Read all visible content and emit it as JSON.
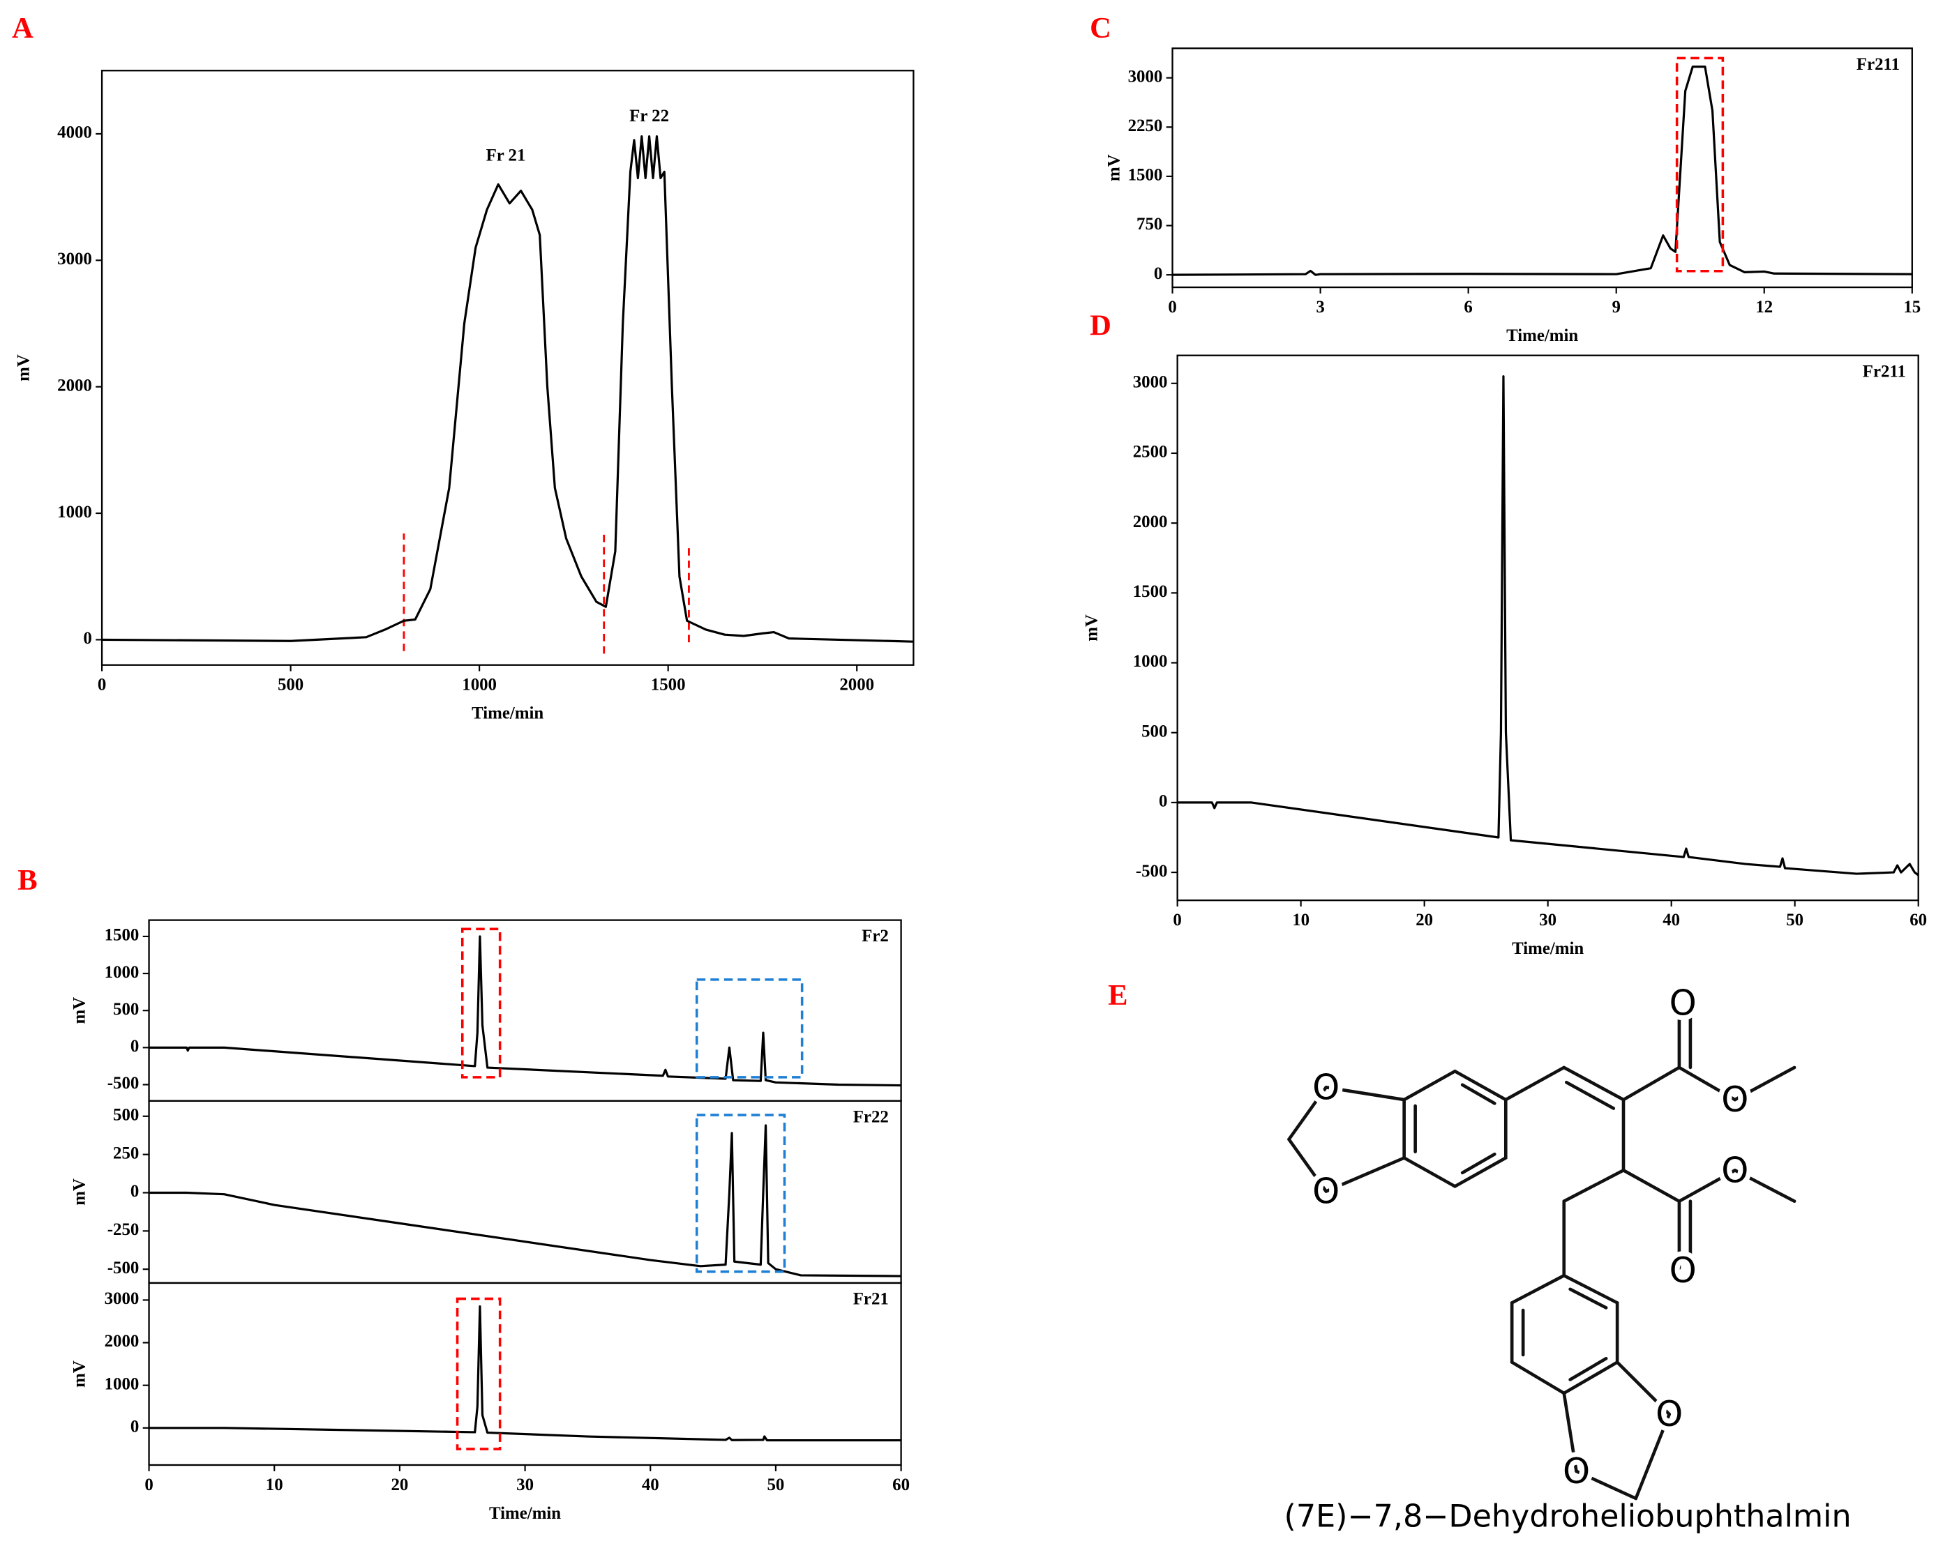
{
  "chart_data": [
    {
      "type": "line",
      "panel": "A",
      "xlabel": "Time/min",
      "ylabel": "mV",
      "xlim": [
        0,
        2150
      ],
      "ylim": [
        -200,
        4500
      ],
      "xticks": [
        0,
        500,
        1000,
        1500,
        2000
      ],
      "yticks": [
        0,
        1000,
        2000,
        3000,
        4000
      ],
      "series": [
        {
          "color": "#000000",
          "x": [
            0,
            500,
            700,
            750,
            800,
            830,
            870,
            920,
            960,
            990,
            1020,
            1050,
            1080,
            1110,
            1140,
            1160,
            1180,
            1200,
            1230,
            1270,
            1310,
            1335,
            1360,
            1380,
            1400,
            1410,
            1420,
            1430,
            1440,
            1450,
            1460,
            1470,
            1480,
            1490,
            1510,
            1530,
            1550,
            1600,
            1650,
            1700,
            1750,
            1780,
            1820,
            2150
          ],
          "values": [
            0,
            -10,
            20,
            80,
            150,
            160,
            400,
            1200,
            2500,
            3100,
            3400,
            3600,
            3450,
            3550,
            3400,
            3200,
            2000,
            1200,
            800,
            500,
            300,
            260,
            700,
            2500,
            3700,
            3950,
            3650,
            3980,
            3650,
            3980,
            3650,
            3980,
            3650,
            3700,
            2000,
            500,
            150,
            80,
            40,
            30,
            50,
            60,
            10,
            -15
          ]
        }
      ],
      "annotations": [
        {
          "text": "Fr 21",
          "x": 1070,
          "y": 3820
        },
        {
          "text": "Fr 22",
          "x": 1450,
          "y": 4130
        }
      ],
      "vlines": [
        {
          "color": "#ff0000",
          "x": 800,
          "y": [
            -90,
            840
          ]
        },
        {
          "color": "#ff0000",
          "x": 1330,
          "y": [
            -110,
            860
          ]
        },
        {
          "color": "#ff0000",
          "x": 1555,
          "y": [
            -20,
            740
          ]
        }
      ]
    },
    {
      "type": "line",
      "panel": "B",
      "ylabel": "mV",
      "trace_label": "Fr2",
      "xlim": [
        0,
        60
      ],
      "ylim": [
        -720,
        1720
      ],
      "yticks": [
        -500,
        0,
        500,
        1000,
        1500
      ],
      "series": [
        {
          "color": "#000000",
          "x": [
            0,
            3,
            3.1,
            3.2,
            6,
            26,
            26.2,
            26.4,
            26.6,
            27,
            41,
            41.2,
            41.4,
            46,
            46.3,
            46.6,
            48.8,
            49,
            49.2,
            50,
            55,
            60
          ],
          "values": [
            0,
            0,
            -40,
            0,
            0,
            -250,
            200,
            1500,
            300,
            -270,
            -380,
            -300,
            -390,
            -420,
            0,
            -440,
            -450,
            200,
            -440,
            -470,
            -500,
            -510
          ]
        }
      ],
      "boxes": [
        {
          "color": "#ff0000",
          "x": [
            25,
            28
          ],
          "y": [
            -400,
            1600
          ]
        },
        {
          "color": "#1f7fd4",
          "x": [
            43.7,
            52.1
          ],
          "y": [
            -400,
            917
          ]
        }
      ]
    },
    {
      "type": "line",
      "ylabel": "mV",
      "trace_label": "Fr22",
      "xlim": [
        0,
        60
      ],
      "ylim": [
        -590,
        600
      ],
      "yticks": [
        -500,
        -250,
        0,
        250,
        500
      ],
      "series": [
        {
          "color": "#000000",
          "x": [
            0,
            3,
            6,
            10,
            20,
            30,
            40,
            44,
            46,
            46.3,
            46.5,
            46.7,
            48.8,
            49,
            49.2,
            49.4,
            50,
            52,
            60
          ],
          "values": [
            0,
            0,
            -10,
            -80,
            -200,
            -320,
            -440,
            -480,
            -470,
            0,
            390,
            -450,
            -470,
            0,
            440,
            -460,
            -500,
            -540,
            -545
          ]
        }
      ],
      "boxes": [
        {
          "color": "#1f7fd4",
          "x": [
            43.7,
            50.7
          ],
          "y": [
            -516,
            508
          ]
        }
      ]
    },
    {
      "type": "line",
      "xlabel": "Time/min",
      "ylabel": "mV",
      "trace_label": "Fr21",
      "xlim": [
        0,
        60
      ],
      "ylim": [
        -870,
        3400
      ],
      "xticks": [
        0,
        10,
        20,
        30,
        40,
        50,
        60
      ],
      "yticks": [
        0,
        1000,
        2000,
        3000
      ],
      "series": [
        {
          "color": "#000000",
          "x": [
            0,
            6,
            26,
            26.2,
            26.4,
            26.6,
            27,
            35,
            46,
            46.3,
            46.5,
            49,
            49.1,
            49.3,
            60
          ],
          "values": [
            0,
            0,
            -100,
            500,
            2850,
            300,
            -110,
            -200,
            -280,
            -230,
            -285,
            -280,
            -200,
            -290,
            -290
          ]
        }
      ],
      "boxes": [
        {
          "color": "#ff0000",
          "x": [
            24.6,
            28
          ],
          "y": [
            -495,
            3030
          ]
        }
      ]
    },
    {
      "type": "line",
      "panel": "C",
      "xlabel": "Time/min",
      "ylabel": "mV",
      "trace_label": "Fr211",
      "xlim": [
        0,
        15
      ],
      "ylim": [
        -190,
        3450
      ],
      "xticks": [
        0,
        3,
        6,
        9,
        12,
        15
      ],
      "yticks": [
        0,
        750,
        1500,
        2250,
        3000
      ],
      "series": [
        {
          "color": "#000000",
          "x": [
            0,
            2.7,
            2.8,
            2.9,
            3,
            6,
            9,
            9.7,
            9.95,
            10.1,
            10.2,
            10.4,
            10.55,
            10.8,
            10.95,
            11.1,
            11.3,
            11.6,
            12,
            12.2,
            15
          ],
          "values": [
            0,
            10,
            60,
            0,
            10,
            15,
            10,
            100,
            600,
            400,
            350,
            2800,
            3170,
            3170,
            2500,
            500,
            150,
            40,
            50,
            20,
            10
          ]
        }
      ],
      "boxes": [
        {
          "color": "#ff0000",
          "x": [
            10.23,
            11.16
          ],
          "y": [
            57,
            3300
          ]
        }
      ]
    },
    {
      "type": "line",
      "panel": "D",
      "xlabel": "Time/min",
      "ylabel": "mV",
      "trace_label": "Fr211",
      "xlim": [
        0,
        60
      ],
      "ylim": [
        -700,
        3200
      ],
      "xticks": [
        0,
        10,
        20,
        30,
        40,
        50,
        60
      ],
      "yticks": [
        -500,
        0,
        500,
        1000,
        1500,
        2000,
        2500,
        3000
      ],
      "series": [
        {
          "color": "#000000",
          "x": [
            0,
            2.8,
            3,
            3.2,
            6,
            26,
            26.2,
            26.4,
            26.6,
            27,
            41,
            41.2,
            41.4,
            46,
            48.8,
            49,
            49.2,
            55,
            58,
            58.3,
            58.6,
            59.3,
            59.7,
            60
          ],
          "values": [
            0,
            0,
            -40,
            0,
            0,
            -250,
            500,
            3050,
            500,
            -270,
            -390,
            -330,
            -390,
            -440,
            -460,
            -400,
            -470,
            -510,
            -500,
            -450,
            -500,
            -440,
            -500,
            -520
          ]
        }
      ]
    }
  ],
  "structure": {
    "panel": "E",
    "name": "(7E)−7,8−Dehydroheliobuphthalmin",
    "atoms": [
      "O",
      "O",
      "O",
      "O",
      "O",
      "O",
      "O",
      "O"
    ]
  }
}
